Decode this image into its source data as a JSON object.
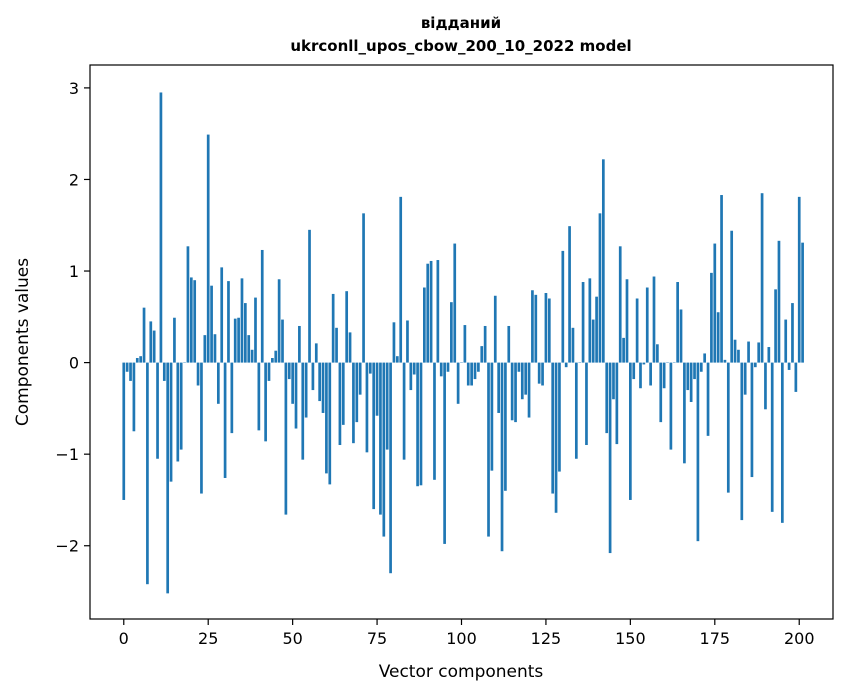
{
  "chart_data": {
    "type": "bar",
    "title": "відданий",
    "subtitle": "ukrconll_upos_cbow_200_10_2022 model",
    "xlabel": "Vector components",
    "ylabel": "Components values",
    "xlim": [
      -10,
      210
    ],
    "ylim": [
      -2.8,
      3.25
    ],
    "x_ticks": [
      0,
      25,
      50,
      75,
      100,
      125,
      150,
      175,
      200
    ],
    "y_ticks": [
      -2,
      -1,
      0,
      1,
      2,
      3
    ],
    "x_tick_labels": [
      "0",
      "25",
      "50",
      "75",
      "100",
      "125",
      "150",
      "175",
      "200"
    ],
    "y_tick_labels": [
      "−2",
      "−1",
      "0",
      "1",
      "2",
      "3"
    ],
    "grid": false,
    "bar_color": "#1f77b4",
    "values": [
      -1.5,
      -0.1,
      -0.2,
      -0.75,
      0.05,
      0.07,
      0.6,
      -2.42,
      0.45,
      0.35,
      -1.05,
      2.95,
      -0.2,
      -2.52,
      -1.3,
      0.49,
      -1.08,
      -0.95,
      0.0,
      1.27,
      0.93,
      0.9,
      -0.25,
      -1.43,
      0.3,
      2.49,
      0.84,
      0.31,
      -0.45,
      1.04,
      -1.26,
      0.89,
      -0.77,
      0.48,
      0.49,
      0.92,
      0.65,
      0.3,
      0.14,
      0.71,
      -0.74,
      1.23,
      -0.86,
      -0.2,
      0.05,
      0.13,
      0.91,
      0.47,
      -1.66,
      -0.18,
      -0.45,
      -0.72,
      0.4,
      -1.06,
      -0.6,
      1.45,
      -0.3,
      0.21,
      -0.42,
      -0.55,
      -1.21,
      -1.33,
      0.75,
      0.38,
      -0.9,
      -0.68,
      0.78,
      0.33,
      -0.88,
      -0.65,
      -0.35,
      1.63,
      -0.98,
      -0.12,
      -1.6,
      -0.58,
      -1.66,
      -1.9,
      -0.95,
      -2.3,
      0.44,
      0.07,
      1.81,
      -1.06,
      0.46,
      -0.3,
      -0.13,
      -1.35,
      -1.34,
      0.82,
      1.08,
      1.11,
      -1.28,
      1.12,
      -0.15,
      -1.98,
      -0.1,
      0.66,
      1.3,
      -0.45,
      0.0,
      0.41,
      -0.25,
      -0.25,
      -0.18,
      -0.1,
      0.18,
      0.4,
      -1.9,
      -1.18,
      0.73,
      -0.55,
      -2.06,
      -1.4,
      0.4,
      -0.63,
      -0.65,
      -0.1,
      -0.4,
      -0.35,
      -0.6,
      0.79,
      0.74,
      -0.23,
      -0.25,
      0.76,
      0.7,
      -1.43,
      -1.64,
      -1.19,
      1.22,
      -0.05,
      1.49,
      0.38,
      -1.05,
      0.0,
      0.88,
      -0.9,
      0.92,
      0.47,
      0.72,
      1.63,
      2.22,
      -0.77,
      -2.08,
      -0.4,
      -0.89,
      1.27,
      0.27,
      0.91,
      -1.5,
      -0.18,
      0.7,
      -0.28,
      -0.02,
      0.82,
      -0.25,
      0.94,
      0.2,
      -0.65,
      -0.28,
      0.0,
      -0.95,
      0.0,
      0.88,
      0.58,
      -1.1,
      -0.3,
      -0.43,
      -0.18,
      -1.95,
      -0.1,
      0.1,
      -0.8,
      0.98,
      1.3,
      0.55,
      1.83,
      0.03,
      -1.42,
      1.44,
      0.25,
      0.14,
      -1.72,
      -0.35,
      0.23,
      -1.25,
      -0.05,
      0.22,
      1.85,
      -0.51,
      0.17,
      -1.63,
      0.8,
      1.33,
      -1.75,
      0.47,
      -0.08,
      0.65,
      -0.32,
      1.81,
      1.31
    ]
  }
}
